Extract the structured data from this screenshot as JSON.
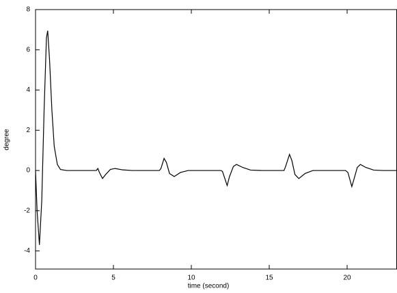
{
  "chart_data": {
    "type": "line",
    "x_label": "time (second)",
    "y_label": "degree",
    "xlim": [
      0,
      23.2
    ],
    "ylim": [
      -4.9,
      8
    ],
    "xticks": [
      0,
      5,
      10,
      15,
      20
    ],
    "yticks": [
      -4,
      -2,
      0,
      2,
      4,
      6,
      8
    ],
    "grid": false,
    "series": [
      {
        "color": "#000000",
        "x": [
          0,
          0.1,
          0.25,
          0.4,
          0.55,
          0.7,
          0.78,
          0.9,
          1.05,
          1.2,
          1.4,
          1.6,
          2,
          3.9,
          4.0,
          4.1,
          4.3,
          4.5,
          4.8,
          5.1,
          5.6,
          6.2,
          7.95,
          8.05,
          8.25,
          8.4,
          8.6,
          8.9,
          9.3,
          9.8,
          11.9,
          12.0,
          12.15,
          12.3,
          12.45,
          12.7,
          12.9,
          13.3,
          13.8,
          14.5,
          15.95,
          16.05,
          16.3,
          16.45,
          16.65,
          16.9,
          17.3,
          17.8,
          19.9,
          20.05,
          20.3,
          20.45,
          20.65,
          20.85,
          21.2,
          21.7,
          22.3,
          23.2
        ],
        "values": [
          0,
          -2,
          -3.7,
          -1.5,
          3,
          6.6,
          6.95,
          5.5,
          3,
          1.2,
          0.3,
          0.05,
          0,
          0,
          0.1,
          -0.1,
          -0.4,
          -0.2,
          0.05,
          0.1,
          0.03,
          0,
          0,
          0.1,
          0.6,
          0.4,
          -0.15,
          -0.3,
          -0.1,
          0,
          0,
          -0.05,
          -0.4,
          -0.75,
          -0.3,
          0.2,
          0.3,
          0.15,
          0.02,
          0,
          0,
          0.2,
          0.8,
          0.5,
          -0.2,
          -0.4,
          -0.15,
          0,
          0,
          -0.1,
          -0.8,
          -0.4,
          0.15,
          0.3,
          0.15,
          0.02,
          0,
          0
        ]
      }
    ]
  }
}
